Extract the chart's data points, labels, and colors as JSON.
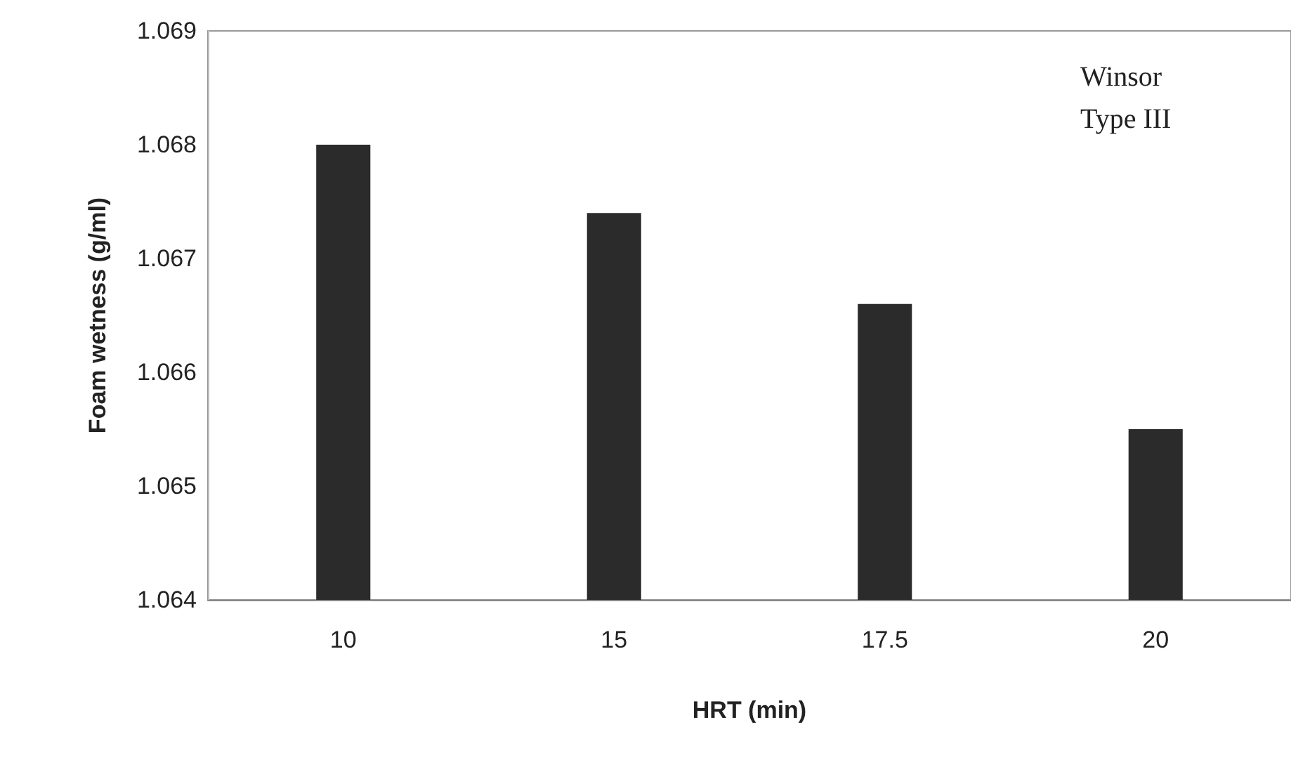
{
  "chart_data": {
    "type": "bar",
    "xlabel": "HRT (min)",
    "ylabel": "Foam wetness (g/ml)",
    "categories": [
      "10",
      "15",
      "17.5",
      "20"
    ],
    "values": [
      1.068,
      1.0674,
      1.0666,
      1.0655
    ],
    "color": "#2b2b2b",
    "ylim": [
      1.064,
      1.069
    ],
    "yticks": [
      1.064,
      1.065,
      1.066,
      1.067,
      1.068,
      1.069
    ],
    "annotations": [
      "Winsor Type III"
    ],
    "grid": false
  }
}
